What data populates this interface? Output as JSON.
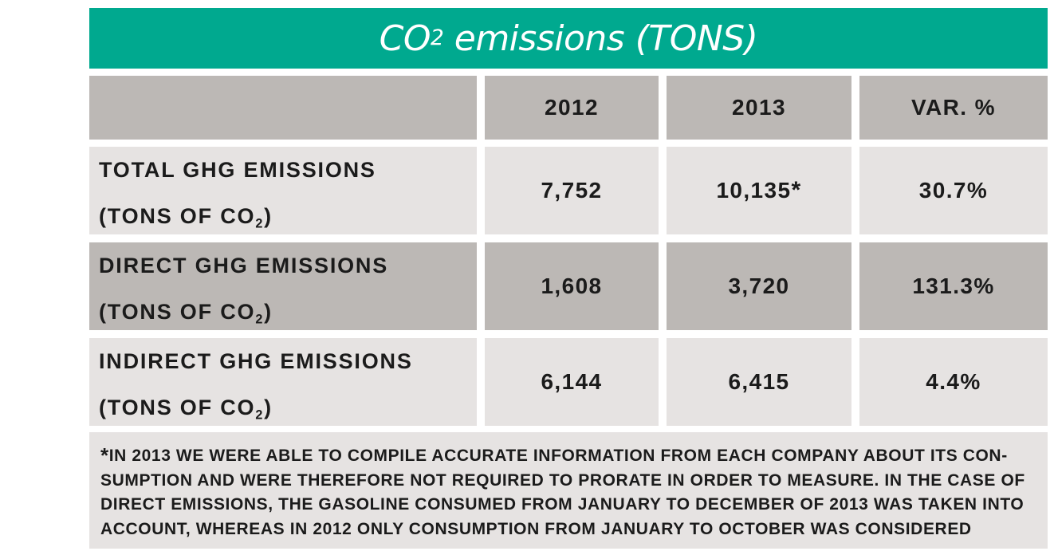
{
  "title": {
    "main": "CO",
    "sub": "2",
    "rest": " emissions (TONS)"
  },
  "header": {
    "col1": "2012",
    "col2": "2013",
    "col3": "VAR. %"
  },
  "rows": [
    {
      "line1": "TOTAL GHG EMISSIONS",
      "line2": "(TONS OF CO",
      "line2_sub": "2",
      "line2_end": ")",
      "v2012": "7,752",
      "v2013": "10,135",
      "v2013_mark": "*",
      "var": "30.7%"
    },
    {
      "line1": "DIRECT GHG EMISSIONS",
      "line2": "(TONS OF CO",
      "line2_sub": "2",
      "line2_end": ")",
      "v2012": "1,608",
      "v2013": "3,720",
      "var": "131.3%"
    },
    {
      "line1": "INDIRECT GHG EMISSIONS",
      "line2": "(TONS OF CO",
      "line2_sub": "2",
      "line2_end": ")",
      "v2012": "6,144",
      "v2013": "6,415",
      "var": "4.4%"
    }
  ],
  "note": {
    "star": "*",
    "text": "IN 2013 WE WERE ABLE TO COMPILE ACCURATE INFORMATION FROM EACH COMPANY ABOUT ITS CON- SUMPTION AND WERE THEREFORE NOT REQUIRED TO PRORATE IN ORDER TO MEASURE. IN THE CASE OF DIRECT EMISSIONS, THE GASOLINE CONSUMED FROM JANUARY TO DECEMBER OF 2013 WAS TAKEN INTO ACCOUNT, WHEREAS IN 2012 ONLY CONSUMPTION FROM JANUARY TO OCTOBER WAS CONSIDERED"
  },
  "colors": {
    "title_bg": "#00a98f",
    "dark_cell": "#bcb8b5",
    "light_cell": "#e6e3e2",
    "text": "#1b1b1b"
  }
}
